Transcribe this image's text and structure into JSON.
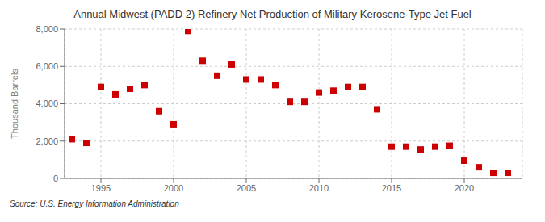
{
  "chart_data": {
    "type": "scatter",
    "title": "Annual Midwest (PADD 2) Refinery Net Production of Military Kerosene-Type Jet Fuel",
    "ylabel": "Thousand Barrels",
    "source": "Source: U.S. Energy Information Administration",
    "x": [
      1993,
      1994,
      1995,
      1996,
      1997,
      1998,
      1999,
      2000,
      2001,
      2002,
      2003,
      2004,
      2005,
      2006,
      2007,
      2008,
      2009,
      2010,
      2011,
      2012,
      2013,
      2014,
      2015,
      2016,
      2017,
      2018,
      2019,
      2020,
      2021,
      2022,
      2023
    ],
    "values": [
      2100,
      1900,
      4900,
      4500,
      4800,
      5000,
      3600,
      2900,
      7900,
      6300,
      5500,
      6100,
      5300,
      5300,
      5000,
      4100,
      4100,
      4600,
      4700,
      4900,
      4900,
      3700,
      1700,
      1700,
      1550,
      1700,
      1750,
      950,
      600,
      300,
      300
    ],
    "color": "#cc0000",
    "marker": "square",
    "xlim": [
      1992.5,
      2024
    ],
    "xticks": [
      1995,
      2000,
      2005,
      2010,
      2015,
      2020
    ],
    "ylim": [
      0,
      8000
    ],
    "yticks": [
      0,
      {
        "value": 2000,
        "label": "2,000"
      },
      {
        "value": 4000,
        "label": "4,000"
      },
      {
        "value": 6000,
        "label": "6,000"
      },
      {
        "value": 8000,
        "label": "8,000"
      }
    ],
    "grid": true
  }
}
